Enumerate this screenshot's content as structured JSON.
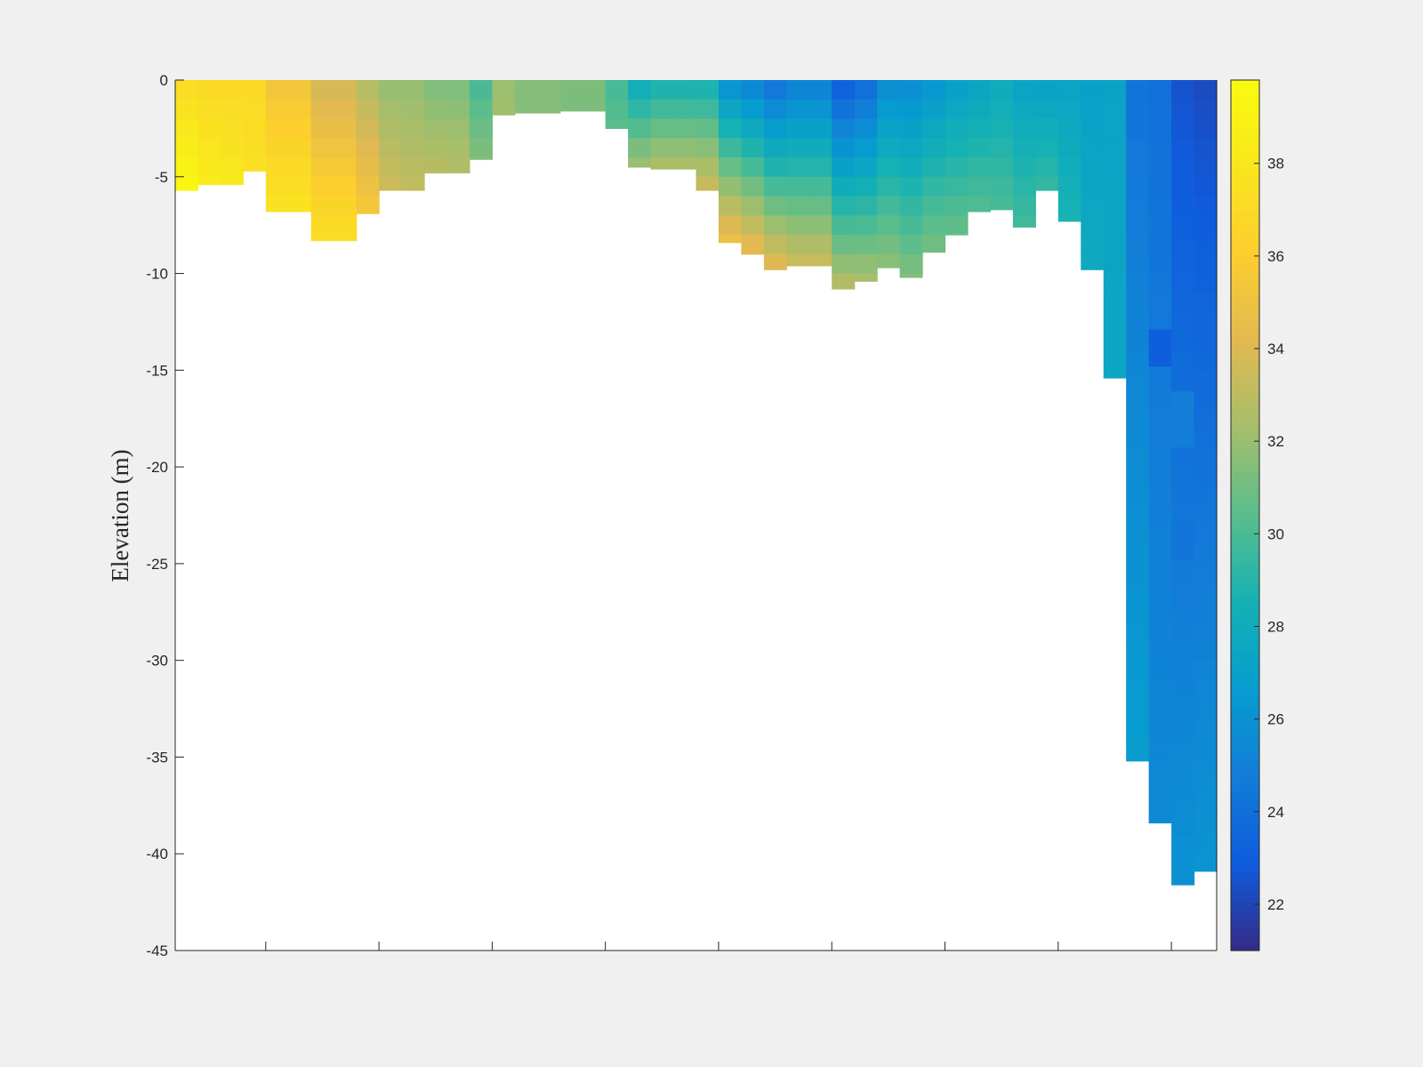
{
  "chart_data": {
    "type": "heatmap",
    "title": "",
    "xlabel": "",
    "ylabel": "Elevation (m)",
    "ylim": [
      -45,
      0
    ],
    "yticks": [
      0,
      -5,
      -10,
      -15,
      -20,
      -25,
      -30,
      -35,
      -40,
      -45
    ],
    "x_tick_labels_shown": false,
    "x_minor_columns": 46,
    "colorbar": {
      "colormap": "parula",
      "clim": [
        21,
        39.8
      ],
      "ticks": [
        22,
        24,
        26,
        28,
        30,
        32,
        34,
        36,
        38
      ]
    },
    "grid": false,
    "columns": [
      {
        "column": 1,
        "depth": -5.7,
        "surface": 37.0,
        "bottom": 39.5
      },
      {
        "column": 2,
        "depth": -5.4,
        "surface": 36.8,
        "bottom": 38.5
      },
      {
        "column": 3,
        "depth": -5.4,
        "surface": 36.8,
        "bottom": 38.2
      },
      {
        "column": 4,
        "depth": -4.7,
        "surface": 36.8,
        "bottom": 37.5
      },
      {
        "column": 5,
        "depth": -6.8,
        "surface": 35.2,
        "bottom": 37.8
      },
      {
        "column": 6,
        "depth": -6.8,
        "surface": 35.2,
        "bottom": 37.8
      },
      {
        "column": 7,
        "depth": -8.3,
        "surface": 33.6,
        "bottom": 37.3
      },
      {
        "column": 8,
        "depth": -8.3,
        "surface": 33.6,
        "bottom": 37.3
      },
      {
        "column": 9,
        "depth": -6.9,
        "surface": 32.6,
        "bottom": 35.6
      },
      {
        "column": 10,
        "depth": -5.7,
        "surface": 31.8,
        "bottom": 33.6
      },
      {
        "column": 11,
        "depth": -5.7,
        "surface": 31.8,
        "bottom": 33.2
      },
      {
        "column": 12,
        "depth": -4.8,
        "surface": 31.2,
        "bottom": 33.0
      },
      {
        "column": 13,
        "depth": -4.8,
        "surface": 31.2,
        "bottom": 32.8
      },
      {
        "column": 14,
        "depth": -4.1,
        "surface": 29.8,
        "bottom": 31.5
      },
      {
        "column": 15,
        "depth": -1.8,
        "surface": 32.0,
        "bottom": 32.2
      },
      {
        "column": 16,
        "depth": -1.7,
        "surface": 31.5,
        "bottom": 31.5
      },
      {
        "column": 17,
        "depth": -1.7,
        "surface": 31.5,
        "bottom": 31.5
      },
      {
        "column": 18,
        "depth": -1.6,
        "surface": 31.3,
        "bottom": 31.3
      },
      {
        "column": 19,
        "depth": -1.6,
        "surface": 31.3,
        "bottom": 31.3
      },
      {
        "column": 20,
        "depth": -2.5,
        "surface": 29.8,
        "bottom": 30.5
      },
      {
        "column": 21,
        "depth": -4.5,
        "surface": 27.8,
        "bottom": 32.2
      },
      {
        "column": 22,
        "depth": -4.6,
        "surface": 28.3,
        "bottom": 32.8
      },
      {
        "column": 23,
        "depth": -4.6,
        "surface": 28.3,
        "bottom": 32.8
      },
      {
        "column": 24,
        "depth": -5.7,
        "surface": 28.3,
        "bottom": 33.6
      },
      {
        "column": 25,
        "depth": -8.4,
        "surface": 25.8,
        "bottom": 35.0
      },
      {
        "column": 26,
        "depth": -9.0,
        "surface": 25.0,
        "bottom": 34.8
      },
      {
        "column": 27,
        "depth": -9.8,
        "surface": 24.0,
        "bottom": 34.5
      },
      {
        "column": 28,
        "depth": -9.6,
        "surface": 24.8,
        "bottom": 33.6
      },
      {
        "column": 29,
        "depth": -9.6,
        "surface": 24.8,
        "bottom": 33.6
      },
      {
        "column": 30,
        "depth": -10.8,
        "surface": 22.8,
        "bottom": 33.0
      },
      {
        "column": 31,
        "depth": -10.4,
        "surface": 23.6,
        "bottom": 32.5
      },
      {
        "column": 32,
        "depth": -9.7,
        "surface": 25.6,
        "bottom": 31.8
      },
      {
        "column": 33,
        "depth": -10.2,
        "surface": 25.6,
        "bottom": 31.5
      },
      {
        "column": 34,
        "depth": -8.9,
        "surface": 26.2,
        "bottom": 31.2
      },
      {
        "column": 35,
        "depth": -8.0,
        "surface": 26.8,
        "bottom": 30.8
      },
      {
        "column": 36,
        "depth": -6.8,
        "surface": 27.2,
        "bottom": 30.3
      },
      {
        "column": 37,
        "depth": -6.7,
        "surface": 27.8,
        "bottom": 30.0
      },
      {
        "column": 38,
        "depth": -7.6,
        "surface": 27.2,
        "bottom": 29.8
      },
      {
        "column": 39,
        "depth": -5.7,
        "surface": 27.0,
        "bottom": 29.5
      },
      {
        "column": 40,
        "depth": -7.3,
        "surface": 27.2,
        "bottom": 28.7
      },
      {
        "column": 41,
        "depth": -9.8,
        "surface": 27.0,
        "bottom": 27.8
      },
      {
        "column": 42,
        "depth": -15.4,
        "surface": 27.2,
        "bottom": 27.5
      },
      {
        "column": 43,
        "depth": -35.2,
        "surface": 24.2,
        "bottom": 26.8
      },
      {
        "column": 44,
        "depth": -38.4,
        "surface": 24.0,
        "bottom": 25.5
      },
      {
        "column": 45,
        "depth": -41.6,
        "surface": 22.5,
        "bottom": 26.0
      },
      {
        "column": 46,
        "depth": -40.9,
        "surface": 22.2,
        "bottom": 26.2
      }
    ],
    "anomalies": [
      {
        "column": 44,
        "top": -12.9,
        "bottom": -14.8,
        "value": 23.0
      },
      {
        "column": 45,
        "top": -22.5,
        "bottom": -24.8,
        "value": 24.3
      },
      {
        "column": 45,
        "top": -16.1,
        "bottom": -19.0,
        "value": 24.8
      }
    ]
  }
}
